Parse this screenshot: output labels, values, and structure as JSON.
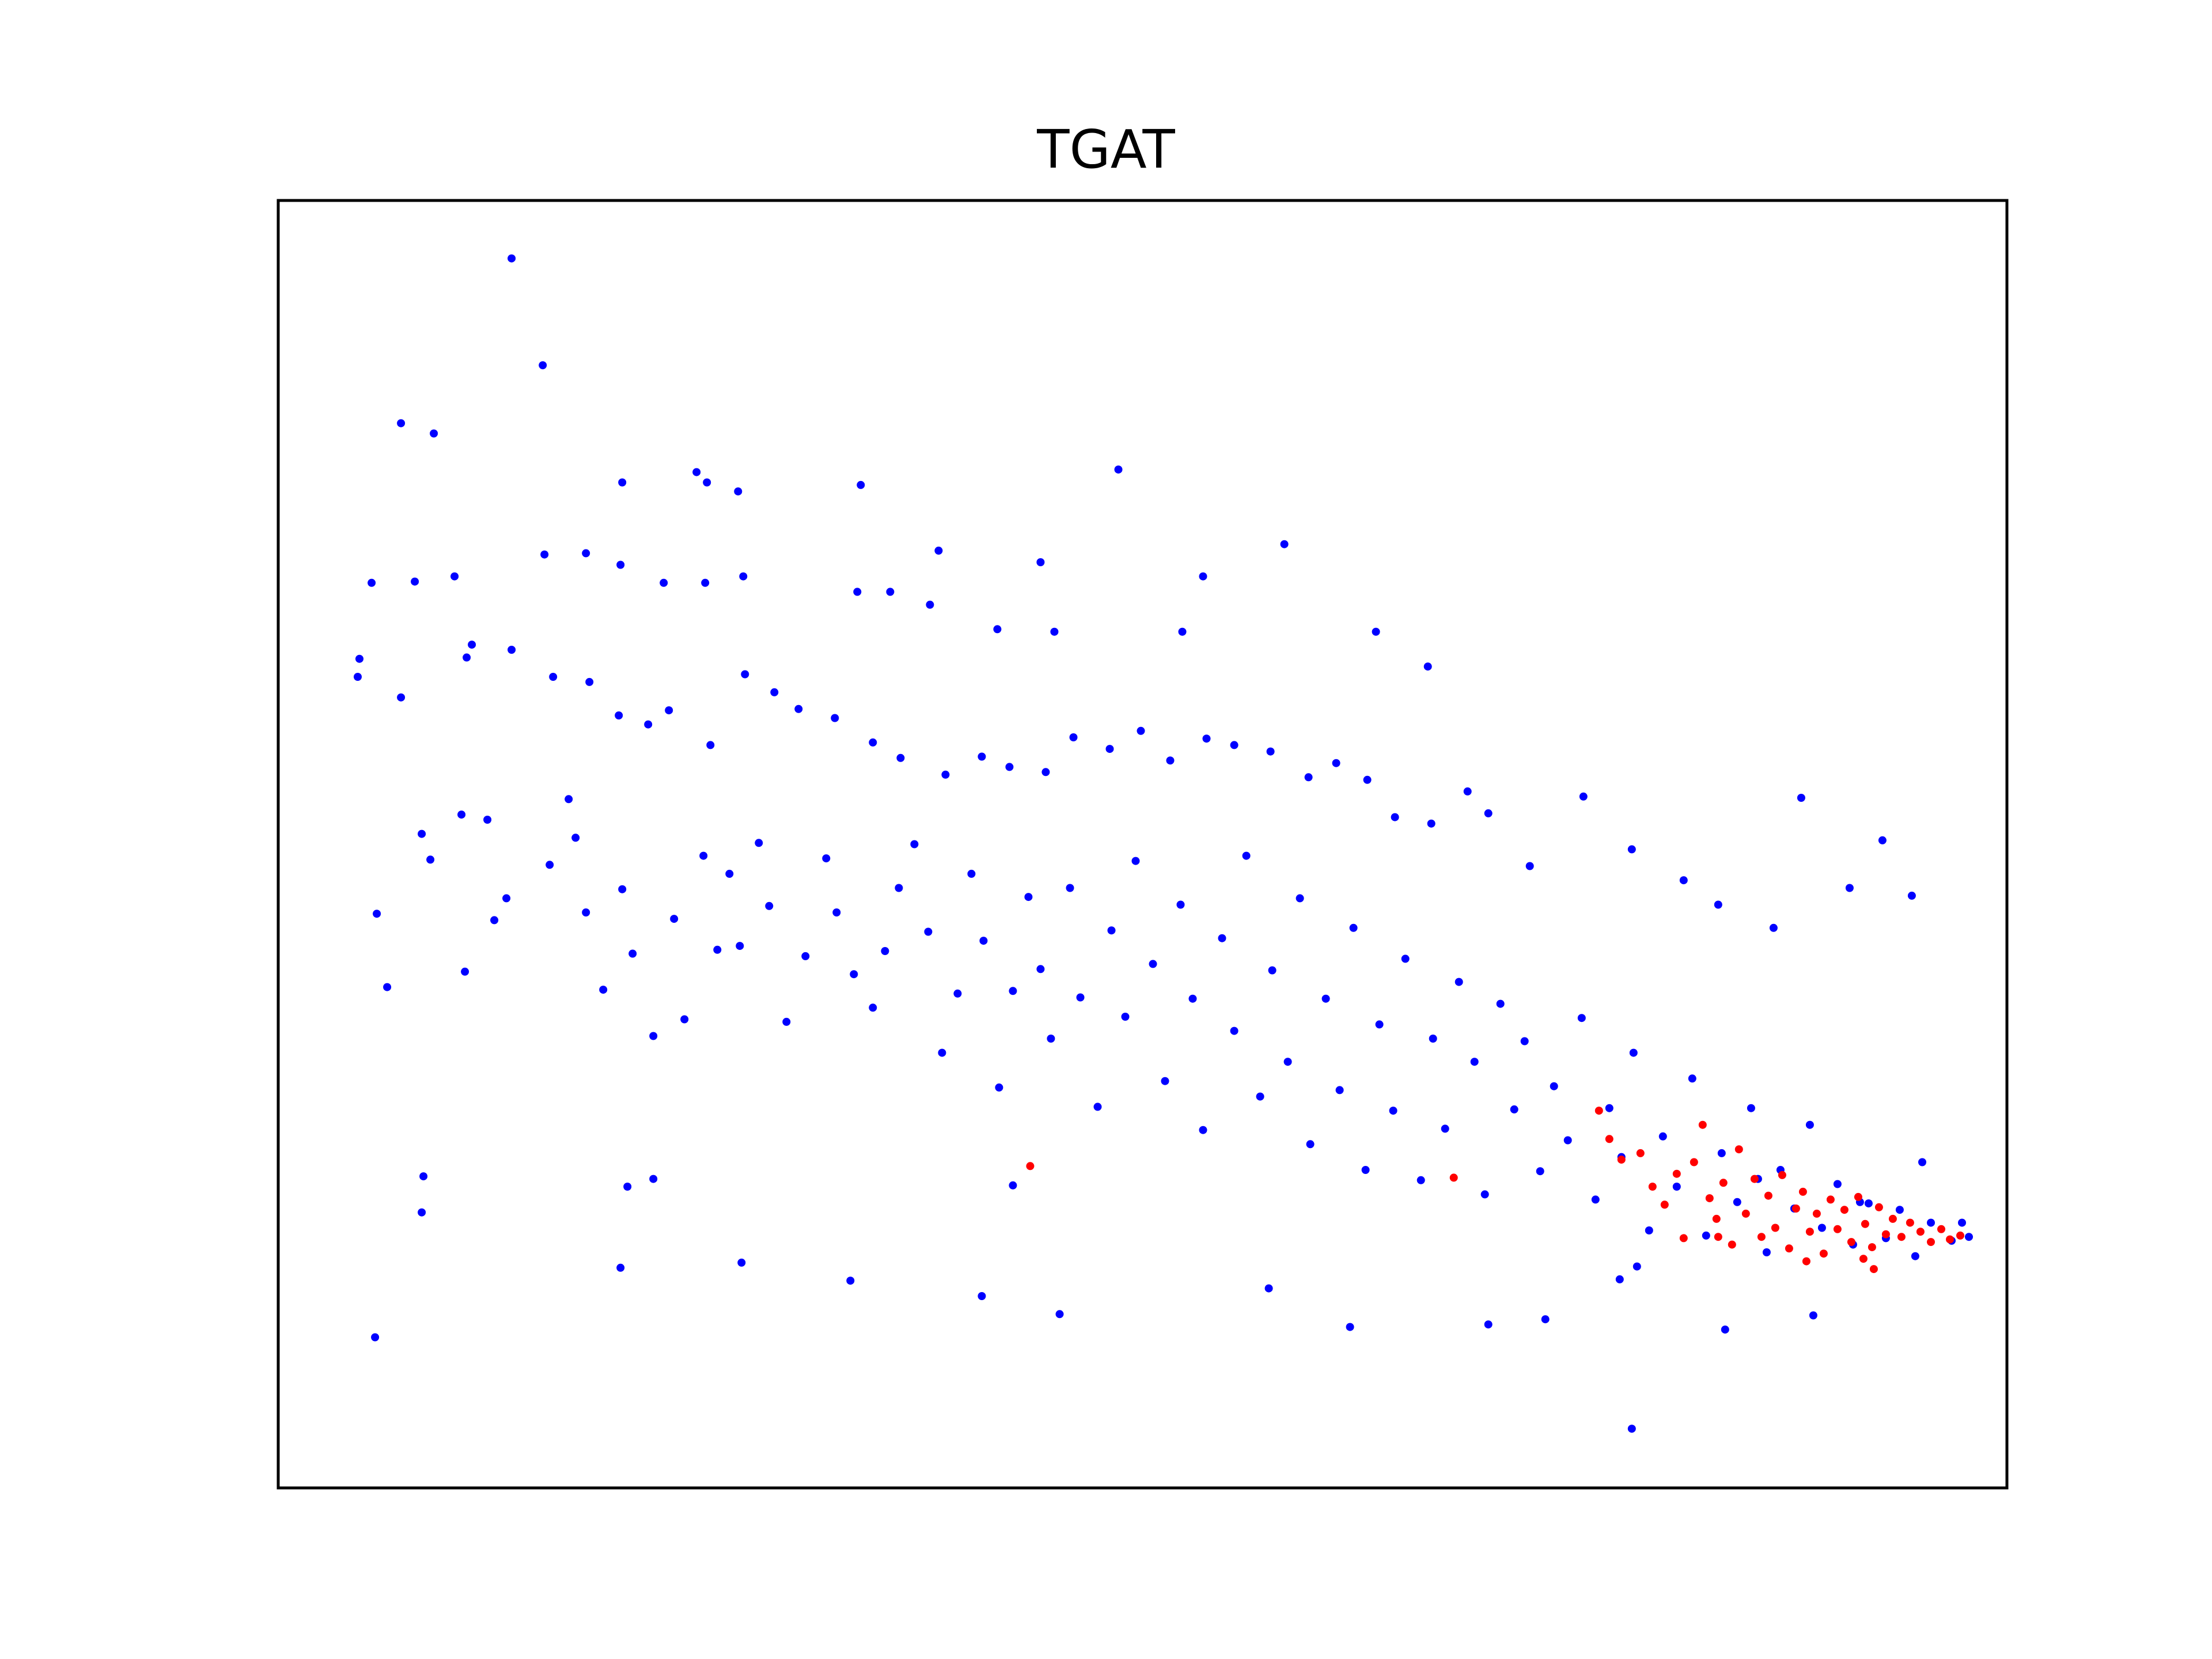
{
  "chart_data": {
    "type": "scatter",
    "title": "TGAT",
    "xlabel": "",
    "ylabel": "",
    "xticks": [],
    "yticks": [],
    "xlim": [
      0,
      100
    ],
    "ylim": [
      0,
      100
    ],
    "grid": false,
    "legend": "none",
    "colors": {
      "series_a": "#0000ff",
      "series_b": "#ff0000",
      "axes": "#000000"
    },
    "series": [
      {
        "color": "#0000ff",
        "points": [
          [
            13.5,
            95.5
          ],
          [
            15.3,
            87.2
          ],
          [
            7.1,
            82.7
          ],
          [
            9.0,
            81.9
          ],
          [
            19.9,
            78.1
          ],
          [
            24.2,
            78.9
          ],
          [
            24.8,
            78.1
          ],
          [
            26.6,
            77.4
          ],
          [
            33.7,
            77.9
          ],
          [
            48.6,
            79.1
          ],
          [
            58.2,
            73.3
          ],
          [
            38.2,
            72.8
          ],
          [
            44.1,
            71.9
          ],
          [
            53.5,
            70.8
          ],
          [
            5.4,
            70.3
          ],
          [
            7.9,
            70.4
          ],
          [
            10.2,
            70.8
          ],
          [
            15.4,
            72.5
          ],
          [
            17.8,
            72.6
          ],
          [
            19.8,
            71.7
          ],
          [
            22.3,
            70.3
          ],
          [
            24.7,
            70.3
          ],
          [
            26.9,
            70.8
          ],
          [
            33.5,
            69.6
          ],
          [
            35.4,
            69.6
          ],
          [
            37.7,
            68.6
          ],
          [
            41.6,
            66.7
          ],
          [
            44.9,
            66.5
          ],
          [
            52.3,
            66.5
          ],
          [
            63.5,
            66.5
          ],
          [
            66.5,
            63.8
          ],
          [
            4.7,
            64.4
          ],
          [
            4.6,
            63.0
          ],
          [
            7.1,
            61.4
          ],
          [
            10.9,
            64.5
          ],
          [
            11.2,
            65.5
          ],
          [
            13.5,
            65.1
          ],
          [
            15.9,
            63.0
          ],
          [
            18.0,
            62.6
          ],
          [
            19.7,
            60.0
          ],
          [
            21.4,
            59.3
          ],
          [
            22.6,
            60.4
          ],
          [
            25.0,
            57.7
          ],
          [
            27.0,
            63.2
          ],
          [
            28.7,
            61.8
          ],
          [
            30.1,
            60.5
          ],
          [
            32.2,
            59.8
          ],
          [
            34.4,
            57.9
          ],
          [
            36.0,
            56.7
          ],
          [
            38.6,
            55.4
          ],
          [
            40.7,
            56.8
          ],
          [
            42.3,
            56.0
          ],
          [
            44.4,
            55.6
          ],
          [
            46.0,
            58.3
          ],
          [
            48.1,
            57.4
          ],
          [
            49.9,
            58.8
          ],
          [
            51.6,
            56.5
          ],
          [
            53.7,
            58.2
          ],
          [
            55.3,
            57.7
          ],
          [
            57.4,
            57.2
          ],
          [
            59.6,
            55.2
          ],
          [
            61.2,
            56.3
          ],
          [
            63.0,
            55.0
          ],
          [
            64.6,
            52.1
          ],
          [
            66.7,
            51.6
          ],
          [
            68.8,
            54.1
          ],
          [
            70.0,
            52.4
          ],
          [
            72.4,
            48.3
          ],
          [
            75.5,
            53.7
          ],
          [
            78.3,
            49.6
          ],
          [
            81.3,
            47.2
          ],
          [
            83.3,
            45.3
          ],
          [
            86.5,
            43.5
          ],
          [
            88.1,
            53.6
          ],
          [
            90.9,
            46.6
          ],
          [
            92.8,
            50.3
          ],
          [
            94.5,
            46.0
          ],
          [
            5.7,
            44.6
          ],
          [
            6.3,
            38.9
          ],
          [
            8.3,
            50.8
          ],
          [
            8.8,
            48.8
          ],
          [
            10.6,
            52.3
          ],
          [
            10.8,
            40.1
          ],
          [
            12.5,
            44.1
          ],
          [
            12.1,
            51.9
          ],
          [
            13.2,
            45.8
          ],
          [
            15.7,
            48.4
          ],
          [
            16.8,
            53.5
          ],
          [
            17.2,
            50.5
          ],
          [
            17.8,
            44.7
          ],
          [
            18.8,
            38.7
          ],
          [
            19.9,
            46.5
          ],
          [
            20.5,
            41.5
          ],
          [
            21.7,
            35.1
          ],
          [
            22.9,
            44.2
          ],
          [
            23.5,
            36.4
          ],
          [
            24.6,
            49.1
          ],
          [
            25.4,
            41.8
          ],
          [
            26.1,
            47.7
          ],
          [
            26.7,
            42.1
          ],
          [
            27.8,
            50.1
          ],
          [
            28.4,
            45.2
          ],
          [
            29.4,
            36.2
          ],
          [
            30.5,
            41.3
          ],
          [
            31.7,
            48.9
          ],
          [
            32.3,
            44.7
          ],
          [
            33.3,
            39.9
          ],
          [
            34.4,
            37.3
          ],
          [
            35.1,
            41.7
          ],
          [
            35.9,
            46.6
          ],
          [
            36.8,
            50.0
          ],
          [
            37.6,
            43.2
          ],
          [
            38.4,
            33.8
          ],
          [
            39.3,
            38.4
          ],
          [
            40.1,
            47.7
          ],
          [
            40.8,
            42.5
          ],
          [
            41.7,
            31.1
          ],
          [
            42.5,
            38.6
          ],
          [
            43.4,
            45.9
          ],
          [
            44.1,
            40.3
          ],
          [
            44.7,
            34.9
          ],
          [
            45.8,
            46.6
          ],
          [
            46.4,
            38.1
          ],
          [
            47.4,
            29.6
          ],
          [
            48.2,
            43.3
          ],
          [
            49.0,
            36.6
          ],
          [
            49.6,
            48.7
          ],
          [
            50.6,
            40.7
          ],
          [
            51.3,
            31.6
          ],
          [
            52.2,
            45.3
          ],
          [
            52.9,
            38.0
          ],
          [
            53.5,
            27.8
          ],
          [
            54.6,
            42.7
          ],
          [
            55.3,
            35.5
          ],
          [
            56.0,
            49.1
          ],
          [
            56.8,
            30.4
          ],
          [
            57.5,
            40.2
          ],
          [
            58.4,
            33.1
          ],
          [
            59.1,
            45.8
          ],
          [
            59.7,
            26.7
          ],
          [
            60.6,
            38.0
          ],
          [
            61.4,
            30.9
          ],
          [
            62.2,
            43.5
          ],
          [
            62.9,
            24.7
          ],
          [
            63.7,
            36.0
          ],
          [
            64.5,
            29.3
          ],
          [
            65.2,
            41.1
          ],
          [
            66.1,
            23.9
          ],
          [
            66.8,
            34.9
          ],
          [
            67.5,
            27.9
          ],
          [
            68.3,
            39.3
          ],
          [
            69.2,
            33.1
          ],
          [
            69.8,
            22.8
          ],
          [
            70.7,
            37.6
          ],
          [
            71.5,
            29.4
          ],
          [
            72.1,
            34.7
          ],
          [
            73.0,
            24.6
          ],
          [
            73.8,
            31.2
          ],
          [
            74.6,
            27.0
          ],
          [
            75.4,
            36.5
          ],
          [
            76.2,
            22.4
          ],
          [
            77.0,
            29.5
          ],
          [
            77.7,
            25.7
          ],
          [
            78.4,
            33.8
          ],
          [
            79.3,
            20.0
          ],
          [
            80.1,
            27.3
          ],
          [
            80.9,
            23.4
          ],
          [
            81.8,
            31.8
          ],
          [
            82.6,
            19.6
          ],
          [
            83.5,
            26.0
          ],
          [
            84.4,
            22.2
          ],
          [
            85.2,
            29.5
          ],
          [
            86.1,
            18.3
          ],
          [
            86.9,
            24.7
          ],
          [
            87.7,
            21.7
          ],
          [
            88.6,
            28.2
          ],
          [
            89.3,
            20.2
          ],
          [
            90.2,
            23.6
          ],
          [
            91.1,
            18.9
          ],
          [
            92.0,
            22.1
          ],
          [
            93.0,
            19.4
          ],
          [
            93.8,
            21.6
          ],
          [
            94.7,
            18.0
          ],
          [
            95.6,
            20.6
          ],
          [
            96.8,
            19.2
          ],
          [
            97.4,
            20.6
          ],
          [
            97.8,
            19.5
          ],
          [
            95.1,
            25.3
          ],
          [
            91.5,
            22.2
          ],
          [
            85.6,
            24.0
          ],
          [
            78.3,
            4.6
          ],
          [
            62.0,
            12.5
          ],
          [
            70.0,
            12.7
          ],
          [
            57.3,
            15.5
          ],
          [
            45.2,
            13.5
          ],
          [
            40.7,
            14.9
          ],
          [
            33.1,
            16.1
          ],
          [
            26.8,
            17.5
          ],
          [
            19.8,
            17.1
          ],
          [
            5.6,
            11.7
          ],
          [
            8.3,
            21.4
          ],
          [
            8.4,
            24.2
          ],
          [
            20.2,
            23.4
          ],
          [
            21.7,
            24.0
          ],
          [
            42.5,
            23.5
          ],
          [
            83.7,
            12.3
          ],
          [
            88.8,
            13.4
          ],
          [
            73.3,
            13.1
          ],
          [
            77.6,
            16.2
          ],
          [
            78.6,
            17.2
          ]
        ]
      },
      {
        "color": "#ff0000",
        "points": [
          [
            43.5,
            25.0
          ],
          [
            68.0,
            24.1
          ],
          [
            76.4,
            29.3
          ],
          [
            77.0,
            27.1
          ],
          [
            77.7,
            25.5
          ],
          [
            78.8,
            26.0
          ],
          [
            79.5,
            23.4
          ],
          [
            80.2,
            22.0
          ],
          [
            80.9,
            24.4
          ],
          [
            81.3,
            19.4
          ],
          [
            81.9,
            25.3
          ],
          [
            82.4,
            28.2
          ],
          [
            82.8,
            22.5
          ],
          [
            83.2,
            20.9
          ],
          [
            83.6,
            23.7
          ],
          [
            84.1,
            18.9
          ],
          [
            84.5,
            26.3
          ],
          [
            84.9,
            21.3
          ],
          [
            85.4,
            24.0
          ],
          [
            85.8,
            19.5
          ],
          [
            86.2,
            22.7
          ],
          [
            86.6,
            20.2
          ],
          [
            87.0,
            24.3
          ],
          [
            87.4,
            18.6
          ],
          [
            87.8,
            21.7
          ],
          [
            88.2,
            23.0
          ],
          [
            88.6,
            19.9
          ],
          [
            89.0,
            21.3
          ],
          [
            89.4,
            18.2
          ],
          [
            89.8,
            22.4
          ],
          [
            90.2,
            20.1
          ],
          [
            90.6,
            21.6
          ],
          [
            91.0,
            19.1
          ],
          [
            91.4,
            22.6
          ],
          [
            91.8,
            20.5
          ],
          [
            92.2,
            18.7
          ],
          [
            92.6,
            21.8
          ],
          [
            93.0,
            19.7
          ],
          [
            93.4,
            20.9
          ],
          [
            93.9,
            19.5
          ],
          [
            94.4,
            20.6
          ],
          [
            95.0,
            19.9
          ],
          [
            95.6,
            19.1
          ],
          [
            96.2,
            20.1
          ],
          [
            96.7,
            19.3
          ],
          [
            97.3,
            19.6
          ],
          [
            91.7,
            17.8
          ],
          [
            92.3,
            17.0
          ],
          [
            88.4,
            17.6
          ],
          [
            83.3,
            19.5
          ]
        ]
      }
    ]
  }
}
